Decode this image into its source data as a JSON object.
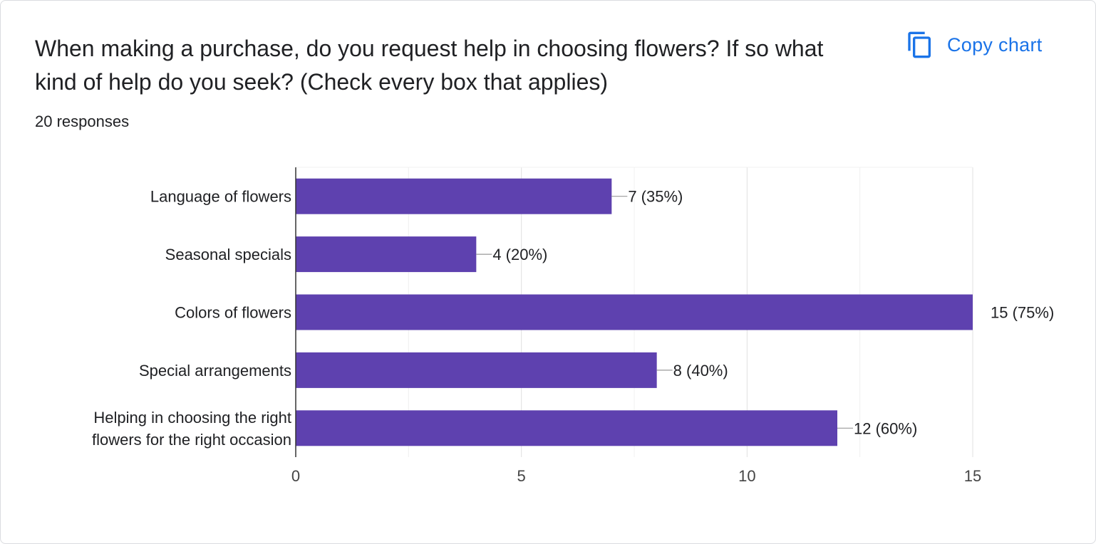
{
  "card": {
    "title": "When making a purchase, do you request help in choosing flowers? If so what kind of help do you seek? (Check every box that applies)",
    "responses": "20 responses",
    "copy_label": "Copy chart",
    "copy_icon": "copy-icon"
  },
  "colors": {
    "bar": "#5e41af",
    "accent": "#1a73e8",
    "grid": "#ebebeb",
    "axis": "#333333"
  },
  "chart_data": {
    "type": "bar",
    "orientation": "horizontal",
    "categories": [
      [
        "Language of flowers"
      ],
      [
        "Seasonal specials"
      ],
      [
        "Colors of flowers"
      ],
      [
        "Special arrangements"
      ],
      [
        "Helping in choosing the right",
        "flowers for the right occasion"
      ]
    ],
    "values": [
      7,
      4,
      15,
      8,
      12
    ],
    "value_labels": [
      "7 (35%)",
      "4 (20%)",
      "15 (75%)",
      "8 (40%)",
      "12 (60%)"
    ],
    "x_ticks": [
      0,
      5,
      10,
      15
    ],
    "xlim": [
      0,
      15
    ],
    "minor_gridlines": true,
    "legend": "none"
  }
}
